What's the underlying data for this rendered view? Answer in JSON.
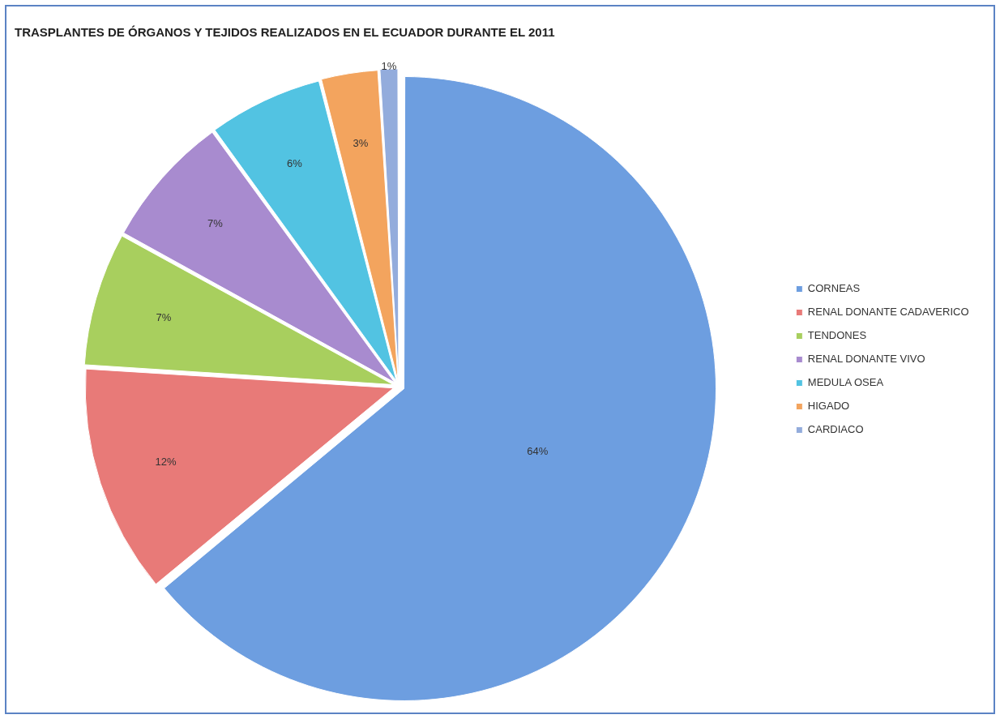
{
  "chart_data": {
    "type": "pie",
    "title": "TRASPLANTES DE ÓRGANOS Y TEJIDOS REALIZADOS EN EL ECUADOR DURANTE EL 2011",
    "categories": [
      "CORNEAS",
      "RENAL DONANTE CADAVERICO",
      "TENDONES",
      "RENAL DONANTE VIVO",
      "MEDULA OSEA",
      "HIGADO",
      "CARDIACO"
    ],
    "values": [
      64,
      12,
      7,
      7,
      6,
      3,
      1
    ],
    "value_labels": [
      "64%",
      "12%",
      "7%",
      "7%",
      "6%",
      "3%",
      "1%"
    ],
    "colors": [
      "#6d9ee0",
      "#e87a78",
      "#a8cf5e",
      "#a88bcf",
      "#52c3e2",
      "#f3a45e",
      "#93acdc"
    ],
    "legend": "right"
  }
}
